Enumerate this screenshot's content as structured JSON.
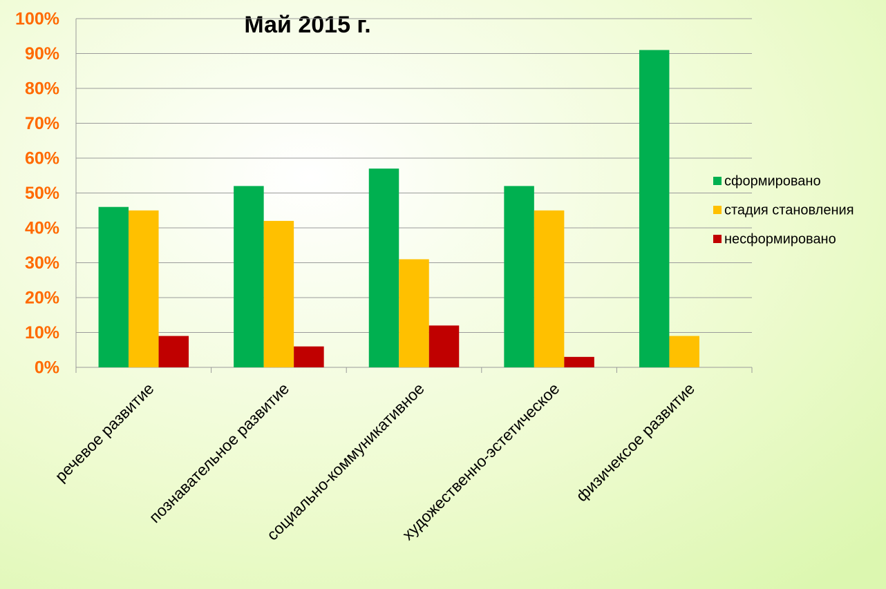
{
  "chart_data": {
    "type": "bar",
    "title": "Май 2015 г.",
    "categories": [
      "речевое развитие",
      "познавательное развитие",
      "социально-коммуникативное",
      "художественно-эстетическое",
      "физичексое развитие"
    ],
    "series": [
      {
        "name": "сформировано",
        "color": "#00b050",
        "values": [
          46,
          52,
          57,
          52,
          91
        ]
      },
      {
        "name": "стадия становления",
        "color": "#ffc000",
        "values": [
          45,
          42,
          31,
          45,
          9
        ]
      },
      {
        "name": "несформировано",
        "color": "#c00000",
        "values": [
          9,
          6,
          12,
          3,
          0
        ]
      }
    ],
    "ylim": [
      0,
      100
    ],
    "yticks": [
      {
        "value": 0,
        "label": "0%"
      },
      {
        "value": 10,
        "label": "10%"
      },
      {
        "value": 20,
        "label": "20%"
      },
      {
        "value": 30,
        "label": "30%"
      },
      {
        "value": 40,
        "label": "40%"
      },
      {
        "value": 50,
        "label": "50%"
      },
      {
        "value": 60,
        "label": "60%"
      },
      {
        "value": 70,
        "label": "70%"
      },
      {
        "value": 80,
        "label": "80%"
      },
      {
        "value": 90,
        "label": "90%"
      },
      {
        "value": 100,
        "label": "100%"
      }
    ],
    "grid": true,
    "legend": "right"
  }
}
